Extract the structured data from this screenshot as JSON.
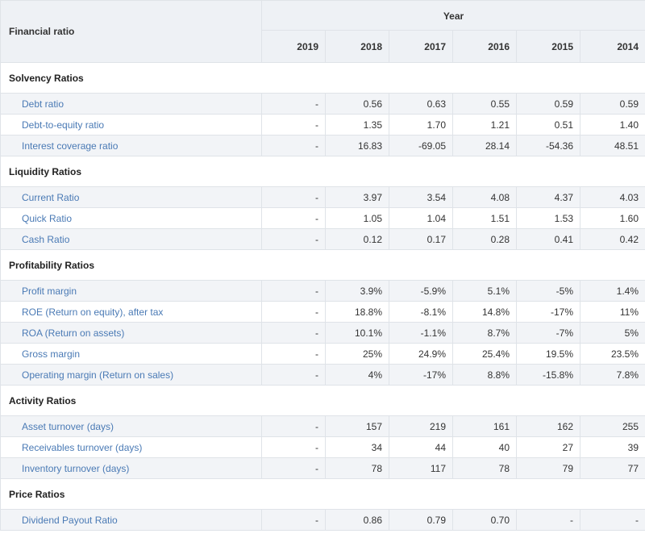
{
  "header": {
    "label": "Financial ratio",
    "group": "Year",
    "years": [
      "2019",
      "2018",
      "2017",
      "2016",
      "2015",
      "2014"
    ]
  },
  "sections": [
    {
      "title": "Solvency Ratios",
      "rows": [
        {
          "label": "Debt ratio",
          "values": [
            "-",
            "0.56",
            "0.63",
            "0.55",
            "0.59",
            "0.59"
          ]
        },
        {
          "label": "Debt-to-equity ratio",
          "values": [
            "-",
            "1.35",
            "1.70",
            "1.21",
            "0.51",
            "1.40"
          ]
        },
        {
          "label": "Interest coverage ratio",
          "values": [
            "-",
            "16.83",
            "-69.05",
            "28.14",
            "-54.36",
            "48.51"
          ]
        }
      ]
    },
    {
      "title": "Liquidity Ratios",
      "rows": [
        {
          "label": "Current Ratio",
          "values": [
            "-",
            "3.97",
            "3.54",
            "4.08",
            "4.37",
            "4.03"
          ]
        },
        {
          "label": "Quick Ratio",
          "values": [
            "-",
            "1.05",
            "1.04",
            "1.51",
            "1.53",
            "1.60"
          ]
        },
        {
          "label": "Cash Ratio",
          "values": [
            "-",
            "0.12",
            "0.17",
            "0.28",
            "0.41",
            "0.42"
          ]
        }
      ]
    },
    {
      "title": "Profitability Ratios",
      "rows": [
        {
          "label": "Profit margin",
          "values": [
            "-",
            "3.9%",
            "-5.9%",
            "5.1%",
            "-5%",
            "1.4%"
          ]
        },
        {
          "label": "ROE (Return on equity), after tax",
          "values": [
            "-",
            "18.8%",
            "-8.1%",
            "14.8%",
            "-17%",
            "11%"
          ]
        },
        {
          "label": "ROA (Return on assets)",
          "values": [
            "-",
            "10.1%",
            "-1.1%",
            "8.7%",
            "-7%",
            "5%"
          ]
        },
        {
          "label": "Gross margin",
          "values": [
            "-",
            "25%",
            "24.9%",
            "25.4%",
            "19.5%",
            "23.5%"
          ]
        },
        {
          "label": "Operating margin (Return on sales)",
          "values": [
            "-",
            "4%",
            "-17%",
            "8.8%",
            "-15.8%",
            "7.8%"
          ]
        }
      ]
    },
    {
      "title": "Activity Ratios",
      "rows": [
        {
          "label": "Asset turnover (days)",
          "values": [
            "-",
            "157",
            "219",
            "161",
            "162",
            "255"
          ]
        },
        {
          "label": "Receivables turnover (days)",
          "values": [
            "-",
            "34",
            "44",
            "40",
            "27",
            "39"
          ]
        },
        {
          "label": "Inventory turnover (days)",
          "values": [
            "-",
            "78",
            "117",
            "78",
            "79",
            "77"
          ]
        }
      ]
    },
    {
      "title": "Price Ratios",
      "rows": [
        {
          "label": "Dividend Payout Ratio",
          "values": [
            "-",
            "0.86",
            "0.79",
            "0.70",
            "-",
            "-"
          ]
        }
      ]
    }
  ]
}
